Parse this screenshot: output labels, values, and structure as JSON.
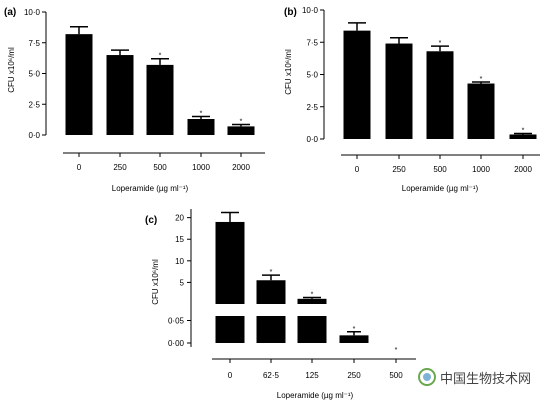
{
  "chart_data": [
    {
      "panel": "(a)",
      "type": "bar",
      "ylabel": "CFU x10⁶/ml",
      "xlabel": "Loperamide (µg ml⁻¹)",
      "categories": [
        "0",
        "250",
        "500",
        "1000",
        "2000"
      ],
      "values": [
        8.2,
        6.5,
        5.7,
        1.3,
        0.7
      ],
      "errors": [
        0.6,
        0.4,
        0.5,
        0.2,
        0.15
      ],
      "significance": [
        "",
        "",
        "*",
        "*",
        "*"
      ],
      "ylim": [
        0,
        10
      ],
      "yticks": [
        "0·0",
        "2·5",
        "5·0",
        "7·5",
        "10·0"
      ],
      "grid": false
    },
    {
      "panel": "(b)",
      "type": "bar",
      "ylabel": "CFU x10⁶/ml",
      "xlabel": "Loperamide (µg ml⁻¹)",
      "categories": [
        "0",
        "250",
        "500",
        "1000",
        "2000"
      ],
      "values": [
        8.4,
        7.4,
        6.8,
        4.3,
        0.35
      ],
      "errors": [
        0.6,
        0.45,
        0.4,
        0.12,
        0.08
      ],
      "significance": [
        "",
        "",
        "*",
        "*",
        "*"
      ],
      "ylim": [
        0,
        10
      ],
      "yticks": [
        "0·0",
        "2·5",
        "5·0",
        "7·5",
        "10·0"
      ],
      "grid": false
    },
    {
      "panel": "(c)",
      "type": "bar",
      "ylabel": "CFU x10⁶/ml",
      "xlabel": "Loperamide (µg ml⁻¹)",
      "categories": [
        "0",
        "62·5",
        "125",
        "250",
        "500"
      ],
      "values": [
        19,
        5.5,
        1.2,
        0.017,
        0
      ],
      "errors": [
        2.2,
        1.2,
        0.3,
        0.008,
        0
      ],
      "significance": [
        "",
        "*",
        "*",
        "*",
        "*"
      ],
      "broken_axis": true,
      "upper_ylim": [
        0,
        22
      ],
      "upper_yticks": [
        "5",
        "10",
        "15",
        "20"
      ],
      "lower_ylim": [
        0,
        0.06
      ],
      "lower_yticks": [
        "0·00",
        "0·05"
      ],
      "grid": false
    }
  ],
  "watermark": {
    "text": "中国生物技术网",
    "icon": "biotech-net-logo"
  }
}
